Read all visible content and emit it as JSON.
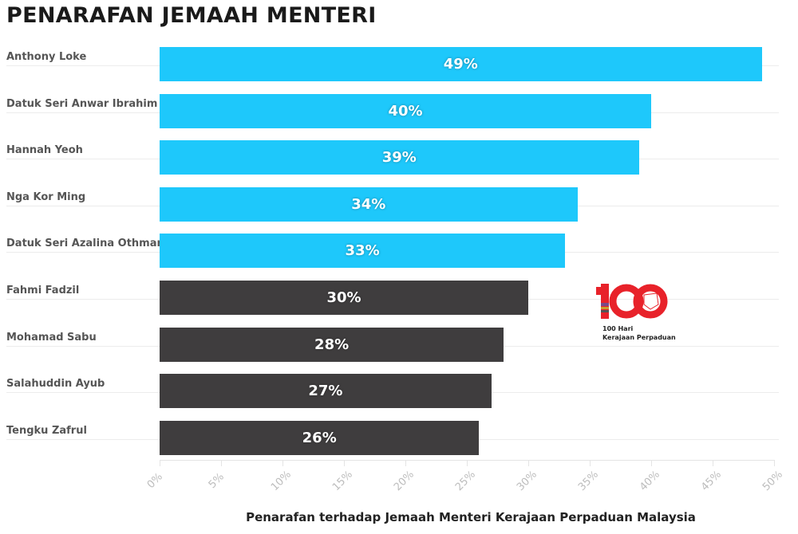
{
  "title": "PENARAFAN JEMAAH MENTERI",
  "logo": {
    "number": "100",
    "line1": "100 Hari",
    "line2": "Kerajaan Perpaduan"
  },
  "colors": {
    "highlight": "#1ec8fb",
    "dark": "#3f3d3e"
  },
  "chart_data": {
    "type": "bar",
    "orientation": "horizontal",
    "title": "PENARAFAN JEMAAH MENTERI",
    "xlabel": "Penarafan terhadap Jemaah Menteri Kerajaan Perpaduan Malaysia",
    "ylabel": "",
    "xlim": [
      0,
      50
    ],
    "x_ticks": [
      "0%",
      "5%",
      "10%",
      "15%",
      "20%",
      "25%",
      "30%",
      "35%",
      "40%",
      "45%",
      "50%"
    ],
    "grid": true,
    "categories": [
      "Anthony Loke",
      "Datuk Seri Anwar Ibrahim",
      "Hannah Yeoh",
      "Nga Kor Ming",
      "Datuk Seri Azalina Othman",
      "Fahmi Fadzil",
      "Mohamad Sabu",
      "Salahuddin Ayub",
      "Tengku Zafrul"
    ],
    "values": [
      49,
      40,
      39,
      34,
      33,
      30,
      28,
      27,
      26
    ],
    "value_labels": [
      "49%",
      "40%",
      "39%",
      "34%",
      "33%",
      "30%",
      "28%",
      "27%",
      "26%"
    ],
    "bar_colors": [
      "#1ec8fb",
      "#1ec8fb",
      "#1ec8fb",
      "#1ec8fb",
      "#1ec8fb",
      "#3f3d3e",
      "#3f3d3e",
      "#3f3d3e",
      "#3f3d3e"
    ]
  }
}
